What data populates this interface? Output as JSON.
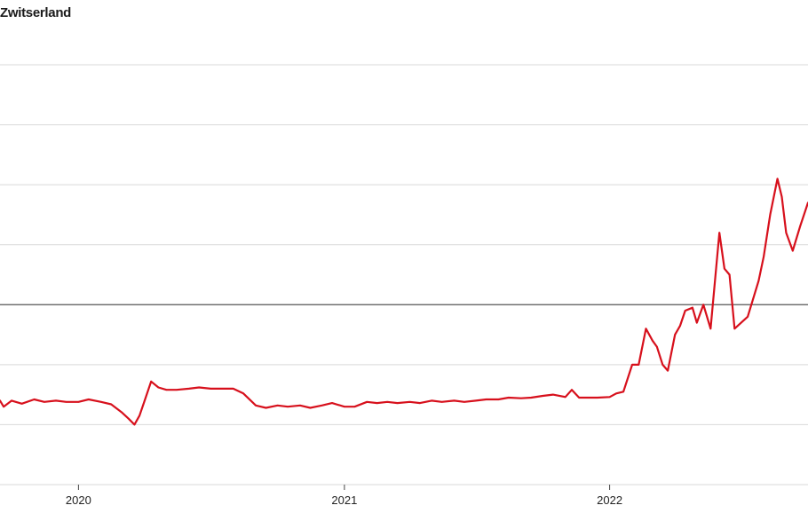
{
  "chart_data": {
    "type": "line",
    "title": "Zwitserland",
    "xlabel": "",
    "ylabel": "",
    "x_tick_labels": [
      "2020",
      "2021",
      "2022"
    ],
    "x_ticks": [
      "2020-01-01",
      "2021-01-01",
      "2022-01-01"
    ],
    "xlim": [
      "2019-09-15",
      "2022-10-01"
    ],
    "ylim": [
      0,
      7
    ],
    "y_gridlines": [
      0,
      1,
      2,
      3,
      4,
      5,
      6,
      7
    ],
    "reference_line": 3,
    "grid": true,
    "legend": "none",
    "colors": {
      "line": "#d7101c",
      "grid": "#d9d9d9",
      "reference": "#555555"
    },
    "series": [
      {
        "x": [
          "2019-09-15",
          "2019-09-20",
          "2019-10-01",
          "2019-10-15",
          "2019-11-01",
          "2019-11-15",
          "2019-12-01",
          "2019-12-15",
          "2020-01-01",
          "2020-01-15",
          "2020-02-01",
          "2020-02-15",
          "2020-03-01",
          "2020-03-10",
          "2020-03-18",
          "2020-03-25",
          "2020-04-01",
          "2020-04-10",
          "2020-04-20",
          "2020-05-01",
          "2020-05-15",
          "2020-06-01",
          "2020-06-15",
          "2020-07-01",
          "2020-07-15",
          "2020-08-01",
          "2020-08-15",
          "2020-09-01",
          "2020-09-15",
          "2020-10-01",
          "2020-10-15",
          "2020-11-01",
          "2020-11-15",
          "2020-12-01",
          "2020-12-15",
          "2021-01-01",
          "2021-01-15",
          "2021-02-01",
          "2021-02-15",
          "2021-03-01",
          "2021-03-15",
          "2021-04-01",
          "2021-04-15",
          "2021-05-01",
          "2021-05-15",
          "2021-06-01",
          "2021-06-15",
          "2021-07-01",
          "2021-07-15",
          "2021-08-01",
          "2021-08-15",
          "2021-09-01",
          "2021-09-15",
          "2021-10-01",
          "2021-10-15",
          "2021-11-01",
          "2021-11-10",
          "2021-11-20",
          "2021-12-01",
          "2021-12-15",
          "2022-01-01",
          "2022-01-10",
          "2022-01-20",
          "2022-02-01",
          "2022-02-10",
          "2022-02-20",
          "2022-03-01",
          "2022-03-07",
          "2022-03-15",
          "2022-03-22",
          "2022-04-01",
          "2022-04-08",
          "2022-04-15",
          "2022-04-25",
          "2022-05-01",
          "2022-05-10",
          "2022-05-20",
          "2022-06-01",
          "2022-06-08",
          "2022-06-15",
          "2022-06-22",
          "2022-07-01",
          "2022-07-10",
          "2022-07-20",
          "2022-07-25",
          "2022-08-01",
          "2022-08-10",
          "2022-08-20",
          "2022-08-26",
          "2022-09-01",
          "2022-09-10",
          "2022-09-20",
          "2022-10-01"
        ],
        "values": [
          1.4,
          1.3,
          1.4,
          1.35,
          1.42,
          1.38,
          1.4,
          1.38,
          1.38,
          1.42,
          1.38,
          1.34,
          1.2,
          1.1,
          1.0,
          1.15,
          1.4,
          1.72,
          1.62,
          1.58,
          1.58,
          1.6,
          1.62,
          1.6,
          1.6,
          1.6,
          1.52,
          1.32,
          1.28,
          1.32,
          1.3,
          1.32,
          1.28,
          1.32,
          1.36,
          1.3,
          1.3,
          1.38,
          1.36,
          1.38,
          1.36,
          1.38,
          1.36,
          1.4,
          1.38,
          1.4,
          1.38,
          1.4,
          1.42,
          1.42,
          1.45,
          1.44,
          1.45,
          1.48,
          1.5,
          1.46,
          1.58,
          1.45,
          1.45,
          1.45,
          1.46,
          1.52,
          1.55,
          2.0,
          2.0,
          2.6,
          2.4,
          2.3,
          2.0,
          1.9,
          2.5,
          2.65,
          2.9,
          2.95,
          2.7,
          3.0,
          2.6,
          4.2,
          3.6,
          3.5,
          2.6,
          2.7,
          2.8,
          3.2,
          3.4,
          3.8,
          4.5,
          5.1,
          4.8,
          4.2,
          3.9,
          4.3,
          4.7
        ]
      }
    ]
  }
}
